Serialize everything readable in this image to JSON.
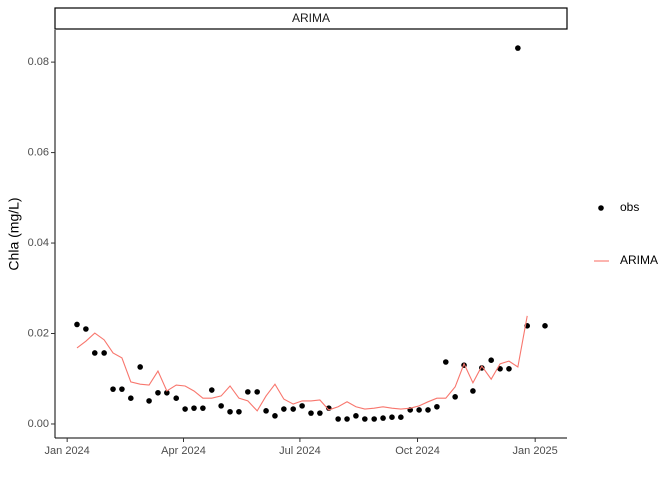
{
  "chart_data": {
    "type": "line",
    "strip": "ARIMA",
    "ylabel": "Chla (mg/L)",
    "x": [
      2024.021,
      2024.04,
      2024.059,
      2024.079,
      2024.098,
      2024.117,
      2024.136,
      2024.156,
      2024.175,
      2024.194,
      2024.213,
      2024.233,
      2024.252,
      2024.271,
      2024.29,
      2024.309,
      2024.329,
      2024.348,
      2024.367,
      2024.386,
      2024.406,
      2024.425,
      2024.444,
      2024.463,
      2024.483,
      2024.502,
      2024.521,
      2024.54,
      2024.559,
      2024.579,
      2024.598,
      2024.617,
      2024.636,
      2024.656,
      2024.675,
      2024.694,
      2024.713,
      2024.733,
      2024.752,
      2024.771,
      2024.79,
      2024.809,
      2024.829,
      2024.848,
      2024.867,
      2024.886,
      2024.906,
      2024.925,
      2024.944,
      2024.963,
      2024.983,
      2025.002,
      2025.021
    ],
    "series": [
      {
        "name": "obs",
        "type": "scatter",
        "color": "#000000",
        "values": [
          0.022,
          0.021,
          0.0157,
          0.0157,
          0.0077,
          0.0077,
          0.0057,
          0.0126,
          0.0051,
          0.0069,
          0.0069,
          0.0057,
          0.0033,
          0.0035,
          0.0035,
          0.0075,
          0.004,
          0.0027,
          0.0027,
          0.0071,
          0.0071,
          0.0029,
          0.0018,
          0.0033,
          0.0033,
          0.004,
          0.0024,
          0.0024,
          0.0035,
          0.0011,
          0.0011,
          0.0018,
          0.0011,
          0.0011,
          0.0013,
          0.0015,
          0.0015,
          0.0031,
          0.0031,
          0.0031,
          0.0038,
          0.0137,
          0.006,
          0.013,
          0.0073,
          0.0124,
          0.0141,
          0.0122,
          0.0122,
          0.0831,
          0.0217,
          null,
          0.0217
        ]
      },
      {
        "name": "ARIMA",
        "type": "line",
        "color": "#f8766d",
        "values": [
          0.0168,
          0.0183,
          0.0201,
          0.0186,
          0.0157,
          0.0146,
          0.0093,
          0.0088,
          0.0086,
          0.0117,
          0.0073,
          0.0086,
          0.0084,
          0.0073,
          0.0057,
          0.0057,
          0.0062,
          0.0084,
          0.0057,
          0.0051,
          0.0029,
          0.0062,
          0.0088,
          0.0055,
          0.0044,
          0.0051,
          0.0051,
          0.0053,
          0.0031,
          0.0038,
          0.0049,
          0.0038,
          0.0033,
          0.0035,
          0.0038,
          0.0035,
          0.0033,
          0.0035,
          0.004,
          0.0049,
          0.0057,
          0.0057,
          0.0082,
          0.0133,
          0.0091,
          0.0128,
          0.0099,
          0.0133,
          0.0139,
          0.0126,
          0.0239,
          null,
          null
        ]
      }
    ],
    "xlim": [
      2023.974,
      2025.068
    ],
    "xticks": [
      {
        "value": 2024.0,
        "label": "Jan 2024"
      },
      {
        "value": 2024.2486,
        "label": "Apr 2024"
      },
      {
        "value": 2024.4973,
        "label": "Jul 2024"
      },
      {
        "value": 2024.7486,
        "label": "Oct 2024"
      },
      {
        "value": 2025.0,
        "label": "Jan 2025"
      }
    ],
    "ylim": [
      -0.0031,
      0.0871
    ],
    "yticks": [
      {
        "value": 0,
        "label": "0.00"
      },
      0.02,
      0.04,
      0.06,
      0.08
    ],
    "grid": false,
    "legend": "right"
  }
}
